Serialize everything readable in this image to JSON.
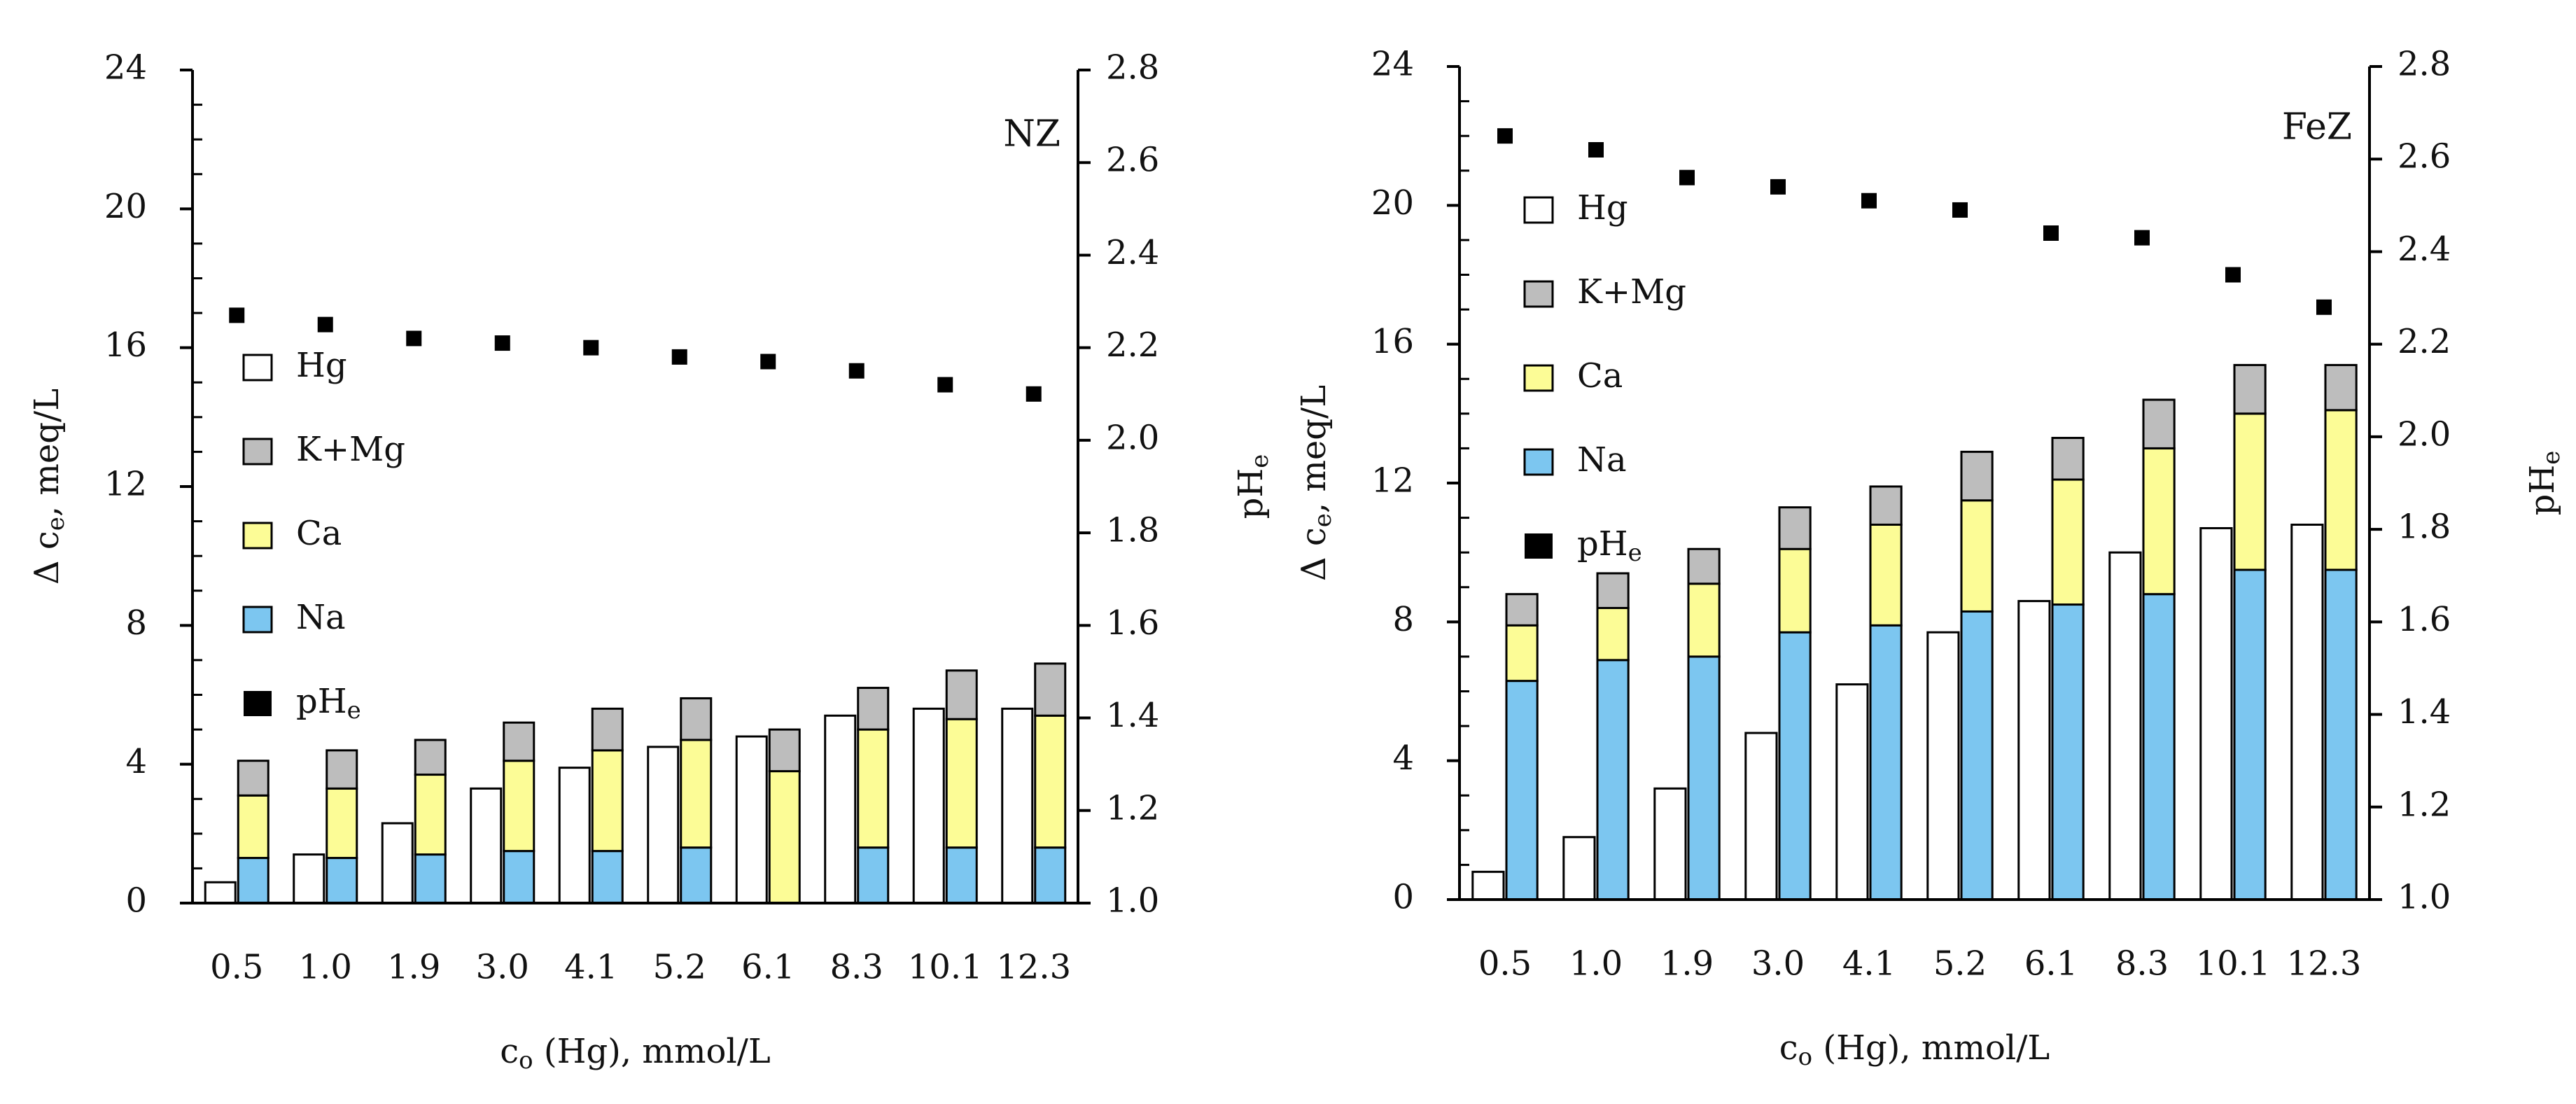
{
  "chart_data": [
    {
      "type": "bar",
      "stacked": true,
      "panel_label": "NZ",
      "categories": [
        "0.5",
        "1.0",
        "1.9",
        "3.0",
        "4.1",
        "5.2",
        "6.1",
        "8.3",
        "10.1",
        "12.3"
      ],
      "xlabel": {
        "base": "c",
        "sub": "o",
        "rest": " (Hg),  mmol/L"
      },
      "ylabel": {
        "pre": "Δ c",
        "sub": "e",
        "rest": ", meq/L"
      },
      "y2label": {
        "base": "pH",
        "sub": "e"
      },
      "ylim": [
        0,
        24
      ],
      "yticks": [
        0,
        4,
        8,
        12,
        16,
        20,
        24
      ],
      "y2lim": [
        1.0,
        2.8
      ],
      "y2ticks": [
        "1.0",
        "1.2",
        "1.4",
        "1.6",
        "1.8",
        "2.0",
        "2.2",
        "2.4",
        "2.6",
        "2.8"
      ],
      "hg": [
        0.6,
        1.4,
        2.3,
        3.3,
        3.9,
        4.5,
        4.8,
        5.4,
        5.6,
        5.6
      ],
      "stack": {
        "Na": [
          1.3,
          1.3,
          1.4,
          1.5,
          1.5,
          1.6,
          0.0,
          1.6,
          1.6,
          1.6
        ],
        "Ca": [
          1.8,
          2.0,
          2.3,
          2.6,
          2.9,
          3.1,
          3.8,
          3.4,
          3.7,
          3.8
        ],
        "K+Mg": [
          1.0,
          1.1,
          1.0,
          1.1,
          1.2,
          1.2,
          1.2,
          1.2,
          1.4,
          1.5
        ]
      },
      "pHe": [
        2.27,
        2.25,
        2.22,
        2.21,
        2.2,
        2.18,
        2.17,
        2.15,
        2.12,
        2.1
      ],
      "legend": [
        "Hg",
        "K+Mg",
        "Ca",
        "Na",
        "pH"
      ],
      "legend_ph_sub": "e",
      "colors": {
        "Hg": "#ffffff",
        "K+Mg": "#bdbdbd",
        "Ca": "#fcfc96",
        "Na": "#7cc6f0",
        "pHe": "#000000",
        "axis": "#000000"
      }
    },
    {
      "type": "bar",
      "stacked": true,
      "panel_label": "FeZ",
      "categories": [
        "0.5",
        "1.0",
        "1.9",
        "3.0",
        "4.1",
        "5.2",
        "6.1",
        "8.3",
        "10.1",
        "12.3"
      ],
      "xlabel": {
        "base": "c",
        "sub": "o",
        "rest": " (Hg),  mmol/L"
      },
      "ylabel": {
        "pre": "Δ c",
        "sub": "e",
        "rest": ", meq/L"
      },
      "y2label": {
        "base": "pH",
        "sub": "e"
      },
      "ylim": [
        0,
        24
      ],
      "yticks": [
        0,
        4,
        8,
        12,
        16,
        20,
        24
      ],
      "y2lim": [
        1.0,
        2.8
      ],
      "y2ticks": [
        "1.0",
        "1.2",
        "1.4",
        "1.6",
        "1.8",
        "2.0",
        "2.2",
        "2.4",
        "2.6",
        "2.8"
      ],
      "hg": [
        0.8,
        1.8,
        3.2,
        4.8,
        6.2,
        7.7,
        8.6,
        10.0,
        10.7,
        10.8
      ],
      "stack": {
        "Na": [
          6.3,
          6.9,
          7.0,
          7.7,
          7.9,
          8.3,
          8.5,
          8.8,
          9.5,
          9.5
        ],
        "Ca": [
          1.6,
          1.5,
          2.1,
          2.4,
          2.9,
          3.2,
          3.6,
          4.2,
          4.5,
          4.6
        ],
        "K+Mg": [
          0.9,
          1.0,
          1.0,
          1.2,
          1.1,
          1.4,
          1.2,
          1.4,
          1.4,
          1.3
        ]
      },
      "pHe": [
        2.65,
        2.62,
        2.56,
        2.54,
        2.51,
        2.49,
        2.44,
        2.43,
        2.35,
        2.28
      ],
      "legend": [
        "Hg",
        "K+Mg",
        "Ca",
        "Na",
        "pH"
      ],
      "legend_ph_sub": "e",
      "colors": {
        "Hg": "#ffffff",
        "K+Mg": "#bdbdbd",
        "Ca": "#fcfc96",
        "Na": "#7cc6f0",
        "pHe": "#000000",
        "axis": "#000000"
      }
    }
  ]
}
